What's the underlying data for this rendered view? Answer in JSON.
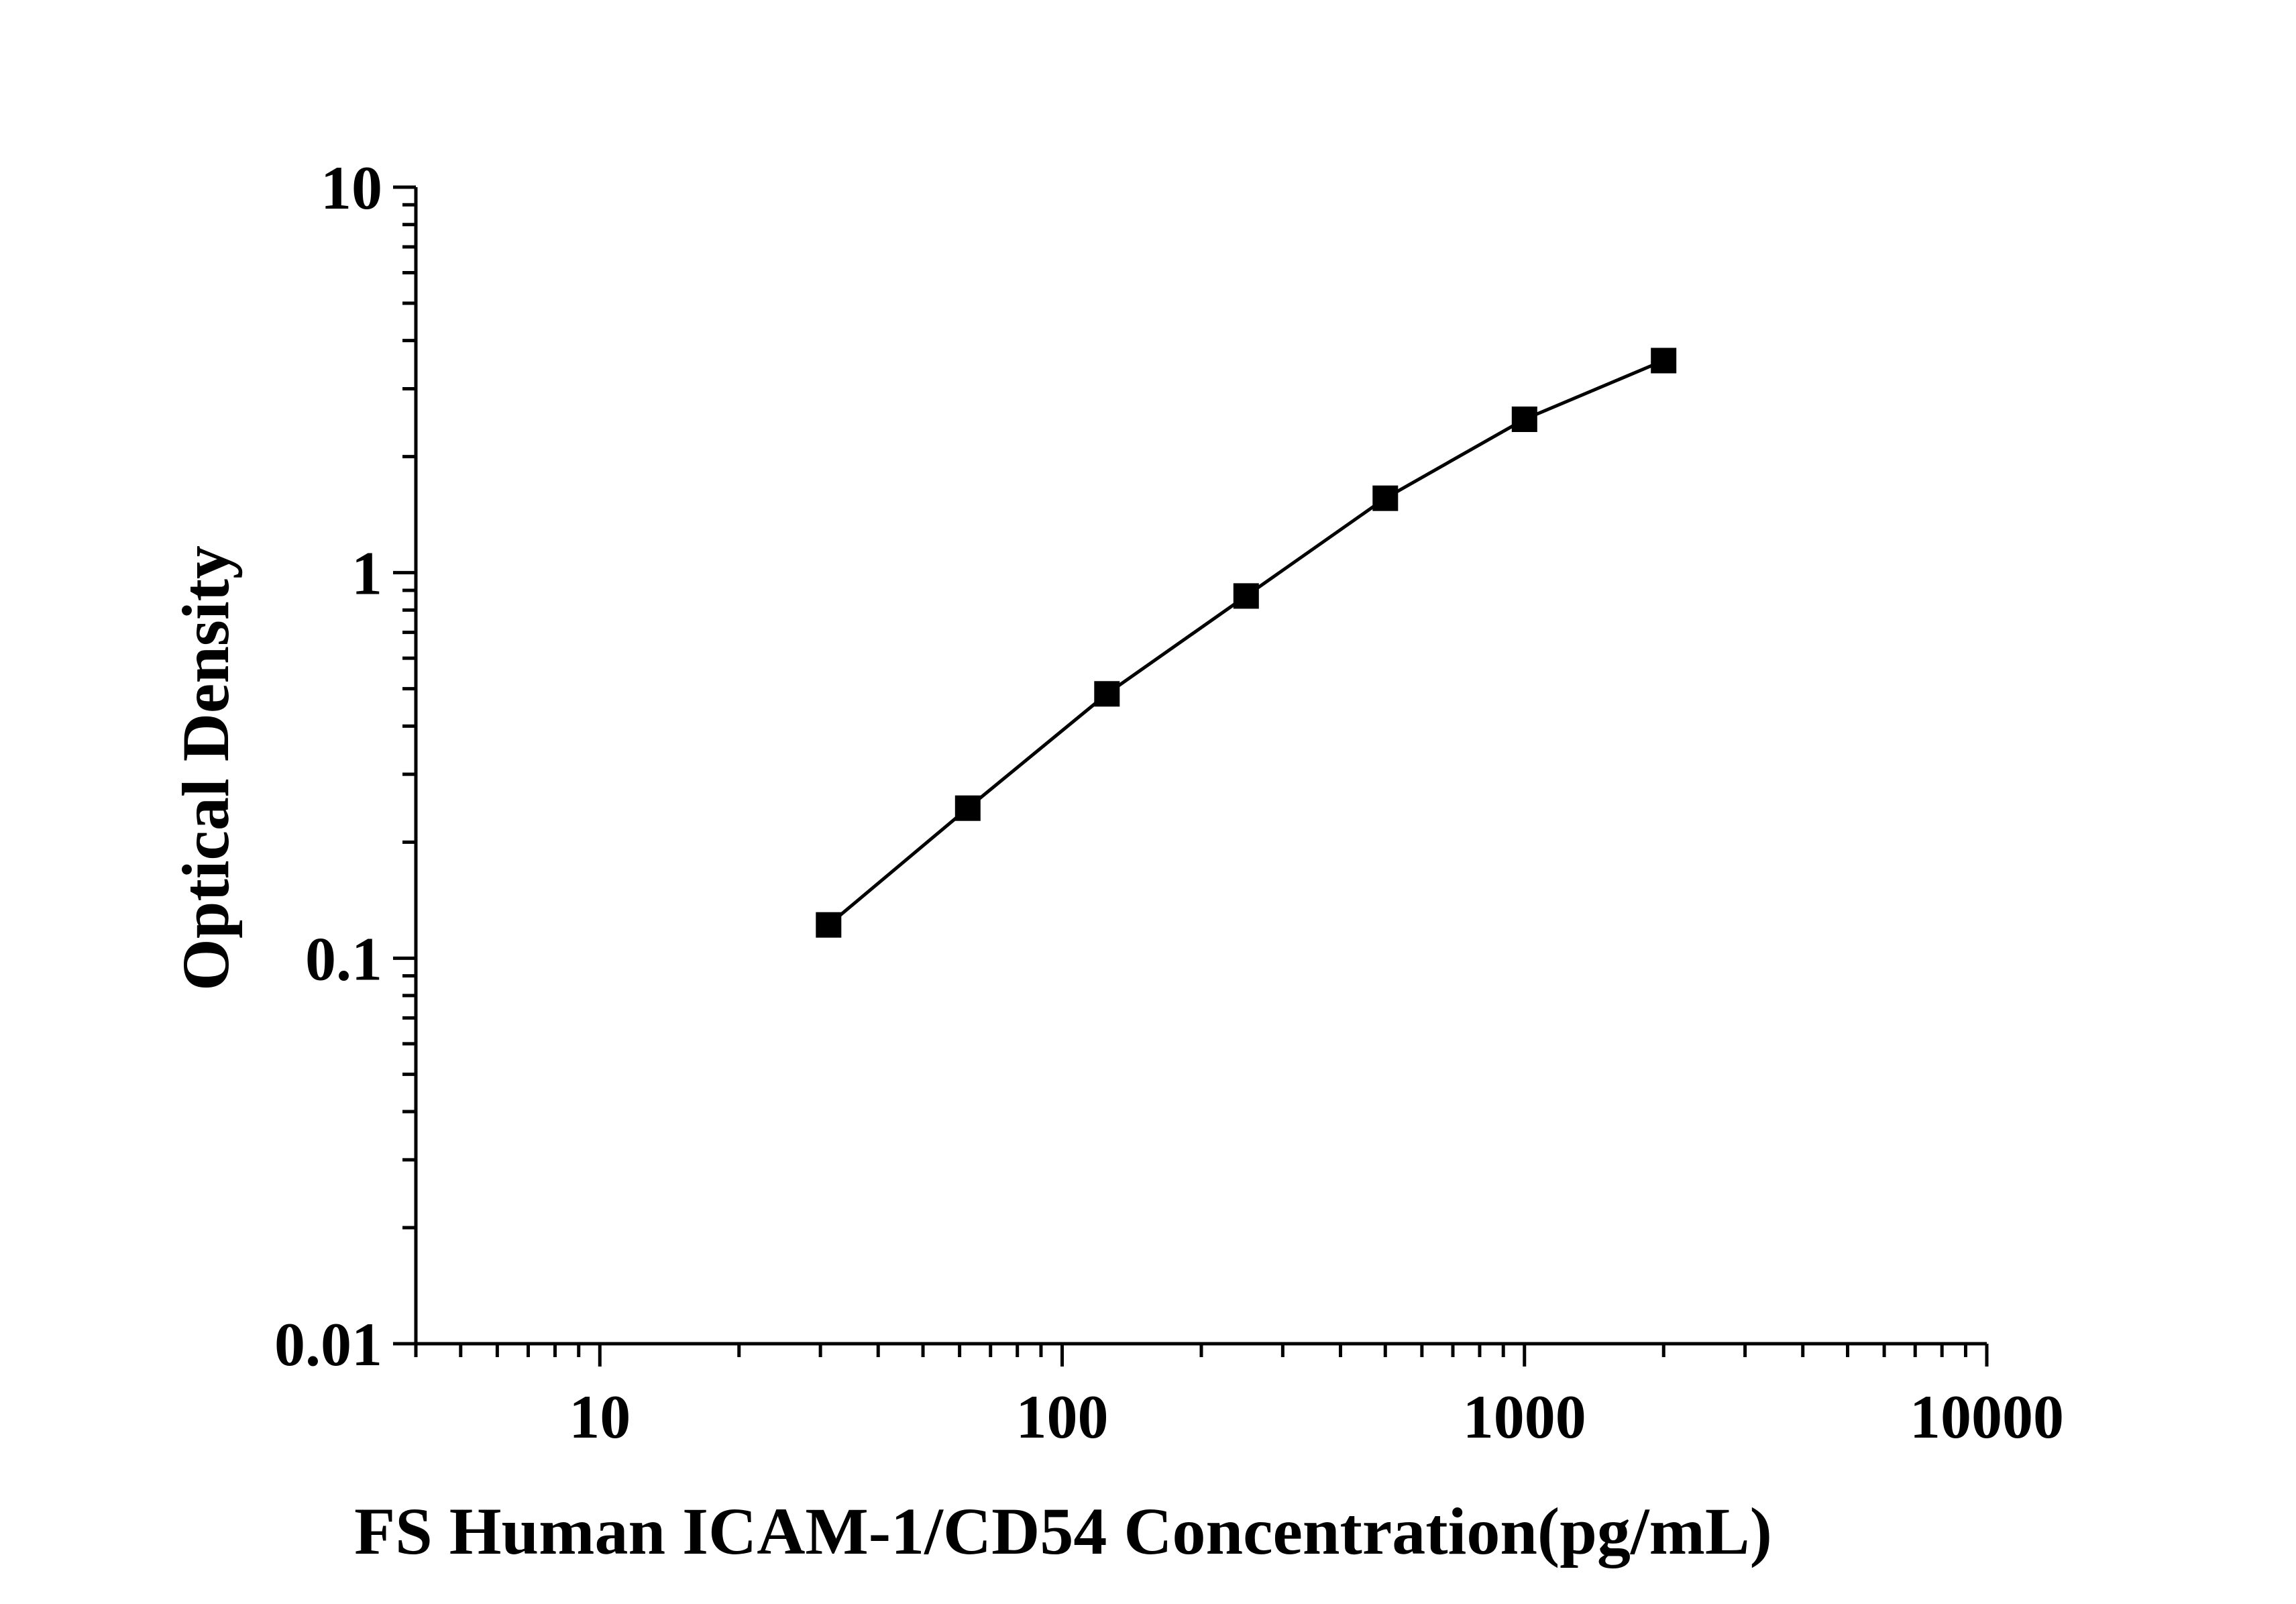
{
  "chart_data": {
    "type": "line",
    "title": "",
    "xlabel": "FS Human ICAM-1/CD54 Concentration(pg/mL)",
    "ylabel": "Optical Density",
    "xscale": "log",
    "yscale": "log",
    "xlim": [
      4,
      10000
    ],
    "ylim": [
      0.01,
      10
    ],
    "xticks": [
      "10",
      "100",
      "1000",
      "10000"
    ],
    "yticks": [
      "0.01",
      "0.1",
      "1",
      "10"
    ],
    "grid": false,
    "legend": "none",
    "marker": "square",
    "color": "#000000",
    "series": [
      {
        "x": [
          31.25,
          62.5,
          125,
          250,
          500,
          1000,
          2000
        ],
        "values": [
          0.122,
          0.245,
          0.485,
          0.87,
          1.56,
          2.5,
          3.55
        ]
      }
    ]
  }
}
